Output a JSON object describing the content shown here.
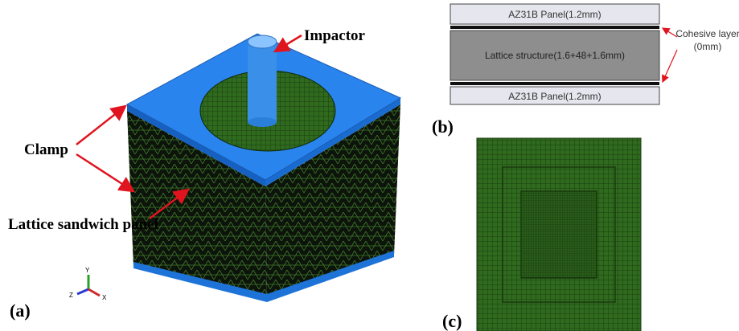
{
  "panel_a": {
    "label": "(a)",
    "impactor": "Impactor",
    "clamp": "Clamp",
    "lattice_panel": "Lattice sandwich panel",
    "axis_labels": [
      "Y",
      "Z",
      "X"
    ]
  },
  "panel_b": {
    "label": "(b)",
    "layers": [
      "AZ31B Panel(1.2mm)",
      "Lattice structure(1.6+48+1.6mm)",
      "AZ31B Panel(1.2mm)"
    ],
    "cohesive_layer": [
      "Cohesive layer",
      "(0mm)"
    ]
  },
  "panel_c": {
    "label": "(c)"
  }
}
